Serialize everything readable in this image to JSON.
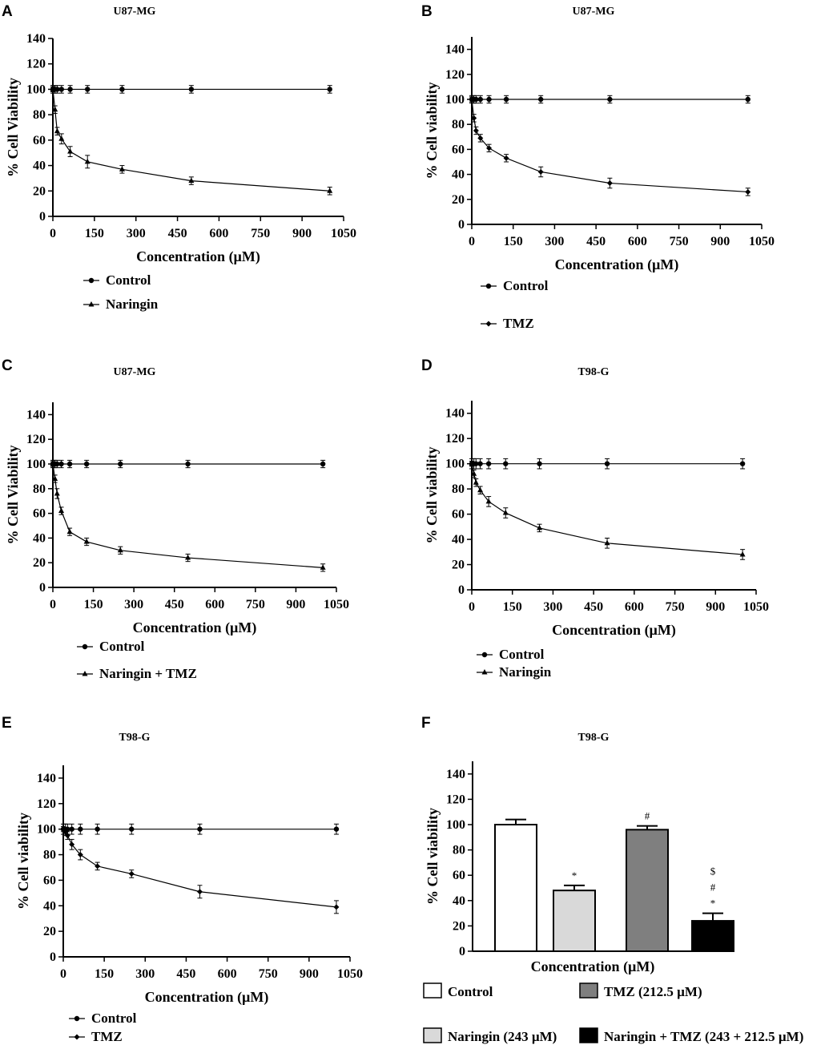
{
  "chart_data": [
    {
      "panel": "A",
      "type": "line",
      "title": "U87-MG",
      "xlabel": "Concentration (µM)",
      "ylabel": "% Cell Viability",
      "xlim": [
        0,
        1050
      ],
      "ylim": [
        0,
        140
      ],
      "xticks": [
        0,
        150,
        300,
        450,
        600,
        750,
        900,
        1050
      ],
      "yticks": [
        0,
        20,
        40,
        60,
        80,
        100,
        120,
        140
      ],
      "series": [
        {
          "name": "Control",
          "marker": "circle",
          "x": [
            0,
            7.8,
            15.6,
            31.25,
            62.5,
            125,
            250,
            500,
            1000
          ],
          "y": [
            100,
            100,
            100,
            100,
            100,
            100,
            100,
            100,
            100
          ],
          "err": [
            3,
            3,
            3,
            3,
            3,
            3,
            3,
            3,
            3
          ]
        },
        {
          "name": "Naringin",
          "marker": "triangle",
          "x": [
            0,
            7.8,
            15.6,
            31.25,
            62.5,
            125,
            250,
            500,
            1000
          ],
          "y": [
            100,
            84,
            67,
            61,
            51,
            43,
            37,
            28,
            20
          ],
          "err": [
            2,
            3,
            3,
            4,
            4,
            5,
            3,
            3,
            3
          ]
        }
      ]
    },
    {
      "panel": "B",
      "type": "line",
      "title": "U87-MG",
      "xlabel": "Concentration (µM)",
      "ylabel": "% Cell viability",
      "xlim": [
        0,
        1050
      ],
      "ylim": [
        0,
        150
      ],
      "xticks": [
        0,
        150,
        300,
        450,
        600,
        750,
        900,
        1050
      ],
      "yticks": [
        0,
        20,
        40,
        60,
        80,
        100,
        120,
        140
      ],
      "series": [
        {
          "name": "Control",
          "marker": "circle",
          "x": [
            0,
            7.8,
            15.6,
            31.25,
            62.5,
            125,
            250,
            500,
            1000
          ],
          "y": [
            100,
            100,
            100,
            100,
            100,
            100,
            100,
            100,
            100
          ],
          "err": [
            3,
            3,
            3,
            3,
            3,
            3,
            3,
            3,
            3
          ]
        },
        {
          "name": "TMZ",
          "marker": "diamond",
          "x": [
            0,
            7.8,
            15.6,
            31.25,
            62.5,
            125,
            250,
            500,
            1000
          ],
          "y": [
            100,
            85,
            75,
            69,
            61,
            53,
            42,
            33,
            26
          ],
          "err": [
            2,
            3,
            3,
            3,
            3,
            3,
            4,
            4,
            3
          ]
        }
      ]
    },
    {
      "panel": "C",
      "type": "line",
      "title": "U87-MG",
      "xlabel": "Concentration (µM)",
      "ylabel": "% Cell Viability",
      "xlim": [
        0,
        1050
      ],
      "ylim": [
        0,
        150
      ],
      "xticks": [
        0,
        150,
        300,
        450,
        600,
        750,
        900,
        1050
      ],
      "yticks": [
        0,
        20,
        40,
        60,
        80,
        100,
        120,
        140
      ],
      "series": [
        {
          "name": "Control",
          "marker": "circle",
          "x": [
            0,
            7.8,
            15.6,
            31.25,
            62.5,
            125,
            250,
            500,
            1000
          ],
          "y": [
            100,
            100,
            100,
            100,
            100,
            100,
            100,
            100,
            100
          ],
          "err": [
            3,
            3,
            3,
            3,
            3,
            3,
            3,
            3,
            3
          ]
        },
        {
          "name": "Naringin + TMZ",
          "marker": "triangle",
          "x": [
            0,
            7.8,
            15.6,
            31.25,
            62.5,
            125,
            250,
            500,
            1000
          ],
          "y": [
            100,
            88,
            76,
            62,
            45,
            37,
            30,
            24,
            16
          ],
          "err": [
            2,
            3,
            4,
            3,
            3,
            3,
            3,
            3,
            3
          ]
        }
      ]
    },
    {
      "panel": "D",
      "type": "line",
      "title": "T98-G",
      "xlabel": "Concentration (µM)",
      "ylabel": "% Cell viability",
      "xlim": [
        0,
        1050
      ],
      "ylim": [
        0,
        150
      ],
      "xticks": [
        0,
        150,
        300,
        450,
        600,
        750,
        900,
        1050
      ],
      "yticks": [
        0,
        20,
        40,
        60,
        80,
        100,
        120,
        140
      ],
      "series": [
        {
          "name": "Control",
          "marker": "circle",
          "x": [
            0,
            7.8,
            15.6,
            31.25,
            62.5,
            125,
            250,
            500,
            1000
          ],
          "y": [
            100,
            100,
            100,
            100,
            100,
            100,
            100,
            100,
            100
          ],
          "err": [
            4,
            4,
            4,
            4,
            4,
            4,
            4,
            4,
            4
          ]
        },
        {
          "name": "Naringin",
          "marker": "triangle",
          "x": [
            0,
            7.8,
            15.6,
            31.25,
            62.5,
            125,
            250,
            500,
            1000
          ],
          "y": [
            100,
            92,
            85,
            79,
            70,
            61,
            49,
            37,
            28
          ],
          "err": [
            2,
            3,
            3,
            3,
            4,
            4,
            3,
            4,
            4
          ]
        }
      ]
    },
    {
      "panel": "E",
      "type": "line",
      "title": "T98-G",
      "xlabel": "Concentration (µM)",
      "ylabel": "% Cell viability",
      "xlim": [
        0,
        1050
      ],
      "ylim": [
        0,
        150
      ],
      "xticks": [
        0,
        150,
        300,
        450,
        600,
        750,
        900,
        1050
      ],
      "yticks": [
        0,
        20,
        40,
        60,
        80,
        100,
        120,
        140
      ],
      "series": [
        {
          "name": "Control",
          "marker": "circle",
          "x": [
            0,
            7.8,
            15.6,
            31.25,
            62.5,
            125,
            250,
            500,
            1000
          ],
          "y": [
            100,
            100,
            100,
            100,
            100,
            100,
            100,
            100,
            100
          ],
          "err": [
            4,
            4,
            4,
            4,
            4,
            4,
            4,
            4,
            4
          ]
        },
        {
          "name": "TMZ",
          "marker": "diamond",
          "x": [
            0,
            7.8,
            15.6,
            31.25,
            62.5,
            125,
            250,
            500,
            1000
          ],
          "y": [
            100,
            98,
            95,
            88,
            80,
            71,
            65,
            51,
            39
          ],
          "err": [
            2,
            3,
            3,
            4,
            4,
            3,
            3,
            5,
            5
          ]
        }
      ]
    },
    {
      "panel": "F",
      "type": "bar",
      "title": "T98-G",
      "xlabel": "Concentration (µM)",
      "ylabel": "% Cell viability",
      "ylim": [
        0,
        150
      ],
      "yticks": [
        0,
        20,
        40,
        60,
        80,
        100,
        120,
        140
      ],
      "categories": [
        "Control",
        "Naringin (243 µM)",
        "TMZ (212.5 µM)",
        "Naringin + TMZ (243 + 212.5 µM)"
      ],
      "values": [
        100,
        48,
        96,
        24
      ],
      "errors": [
        4,
        4,
        3,
        6
      ],
      "colors": [
        "#ffffff",
        "#d9d9d9",
        "#7f7f7f",
        "#000000"
      ],
      "annotations": [
        [],
        [
          "*"
        ],
        [
          "#"
        ],
        [
          "*",
          "#",
          "$"
        ]
      ]
    }
  ]
}
